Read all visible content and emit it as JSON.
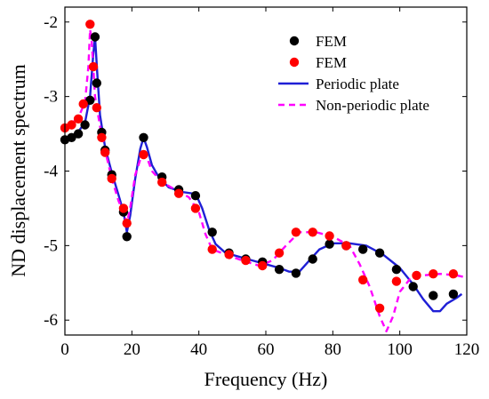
{
  "chart_data": {
    "type": "line",
    "xlabel": "Frequency (Hz)",
    "ylabel": "ND displacement spectrum",
    "xlim": [
      0,
      120
    ],
    "ylim": [
      -6.2,
      -1.8
    ],
    "x_ticks": [
      0,
      20,
      40,
      60,
      80,
      100,
      120
    ],
    "y_ticks": [
      -2,
      -3,
      -4,
      -5,
      -6
    ],
    "x_tick_labels": [
      "0",
      "20",
      "40",
      "60",
      "80",
      "100",
      "120"
    ],
    "y_tick_labels": [
      "-2",
      "-3",
      "-4",
      "-5",
      "-6"
    ],
    "grid": false,
    "legend_position": "top-right",
    "series": [
      {
        "name": "FEM",
        "kind": "scatter",
        "color": "#000000",
        "points": [
          [
            0,
            -3.58
          ],
          [
            2,
            -3.55
          ],
          [
            4,
            -3.5
          ],
          [
            6,
            -3.38
          ],
          [
            7.5,
            -3.05
          ],
          [
            9,
            -2.2
          ],
          [
            9.5,
            -2.82
          ],
          [
            11,
            -3.48
          ],
          [
            12,
            -3.72
          ],
          [
            14,
            -4.05
          ],
          [
            17.5,
            -4.55
          ],
          [
            18.5,
            -4.88
          ],
          [
            23.5,
            -3.55
          ],
          [
            29,
            -4.08
          ],
          [
            34,
            -4.25
          ],
          [
            39,
            -4.33
          ],
          [
            44,
            -4.82
          ],
          [
            49,
            -5.1
          ],
          [
            54,
            -5.18
          ],
          [
            59,
            -5.22
          ],
          [
            64,
            -5.32
          ],
          [
            69,
            -5.37
          ],
          [
            74,
            -5.18
          ],
          [
            79,
            -4.98
          ],
          [
            84,
            -5.0
          ],
          [
            89,
            -5.05
          ],
          [
            94,
            -5.1
          ],
          [
            99,
            -5.32
          ],
          [
            104,
            -5.55
          ],
          [
            110,
            -5.67
          ],
          [
            116,
            -5.65
          ]
        ]
      },
      {
        "name": "FEM",
        "kind": "scatter",
        "color": "#ff0000",
        "points": [
          [
            0,
            -3.42
          ],
          [
            2,
            -3.38
          ],
          [
            4,
            -3.3
          ],
          [
            5.5,
            -3.1
          ],
          [
            7.5,
            -2.03
          ],
          [
            8.5,
            -2.6
          ],
          [
            9.5,
            -3.15
          ],
          [
            11,
            -3.55
          ],
          [
            12,
            -3.75
          ],
          [
            14,
            -4.1
          ],
          [
            17.5,
            -4.5
          ],
          [
            18.5,
            -4.7
          ],
          [
            23.5,
            -3.78
          ],
          [
            29,
            -4.15
          ],
          [
            34,
            -4.3
          ],
          [
            39,
            -4.5
          ],
          [
            44,
            -5.05
          ],
          [
            49,
            -5.12
          ],
          [
            54,
            -5.2
          ],
          [
            59,
            -5.27
          ],
          [
            64,
            -5.1
          ],
          [
            69,
            -4.82
          ],
          [
            74,
            -4.82
          ],
          [
            79,
            -4.87
          ],
          [
            84,
            -5.0
          ],
          [
            89,
            -5.46
          ],
          [
            94,
            -5.84
          ],
          [
            99,
            -5.48
          ],
          [
            105,
            -5.4
          ],
          [
            110,
            -5.38
          ],
          [
            116,
            -5.38
          ]
        ]
      },
      {
        "name": "Periodic plate",
        "kind": "line",
        "color": "#1f1fd6",
        "style": "solid",
        "points": [
          [
            0,
            -3.56
          ],
          [
            2,
            -3.53
          ],
          [
            4,
            -3.47
          ],
          [
            6,
            -3.35
          ],
          [
            7.5,
            -3.0
          ],
          [
            8.5,
            -2.42
          ],
          [
            9,
            -2.2
          ],
          [
            9.6,
            -2.65
          ],
          [
            10.5,
            -3.25
          ],
          [
            12,
            -3.68
          ],
          [
            14,
            -4.02
          ],
          [
            16,
            -4.32
          ],
          [
            17.5,
            -4.55
          ],
          [
            18.5,
            -4.82
          ],
          [
            19.5,
            -4.6
          ],
          [
            21,
            -4.1
          ],
          [
            22.5,
            -3.7
          ],
          [
            23.5,
            -3.55
          ],
          [
            24.5,
            -3.68
          ],
          [
            26,
            -3.92
          ],
          [
            28,
            -4.08
          ],
          [
            31,
            -4.22
          ],
          [
            35,
            -4.28
          ],
          [
            38,
            -4.3
          ],
          [
            39.5,
            -4.35
          ],
          [
            41,
            -4.5
          ],
          [
            43,
            -4.78
          ],
          [
            45,
            -4.98
          ],
          [
            48,
            -5.1
          ],
          [
            52,
            -5.15
          ],
          [
            56,
            -5.2
          ],
          [
            60,
            -5.25
          ],
          [
            64,
            -5.3
          ],
          [
            67,
            -5.35
          ],
          [
            70,
            -5.35
          ],
          [
            73,
            -5.2
          ],
          [
            76,
            -5.05
          ],
          [
            80,
            -4.97
          ],
          [
            85,
            -4.97
          ],
          [
            90,
            -5.0
          ],
          [
            95,
            -5.12
          ],
          [
            100,
            -5.3
          ],
          [
            104,
            -5.52
          ],
          [
            107,
            -5.72
          ],
          [
            110,
            -5.88
          ],
          [
            112,
            -5.88
          ],
          [
            114,
            -5.78
          ],
          [
            117,
            -5.7
          ],
          [
            118.5,
            -5.65
          ]
        ]
      },
      {
        "name": "Non-periodic plate",
        "kind": "line",
        "color": "#ff00ff",
        "style": "dashed",
        "points": [
          [
            0,
            -3.4
          ],
          [
            2,
            -3.36
          ],
          [
            4,
            -3.28
          ],
          [
            6,
            -3.08
          ],
          [
            7,
            -2.6
          ],
          [
            7.5,
            -2.1
          ],
          [
            8,
            -2.25
          ],
          [
            9,
            -3.0
          ],
          [
            10.5,
            -3.4
          ],
          [
            12,
            -3.72
          ],
          [
            14,
            -4.1
          ],
          [
            16,
            -4.4
          ],
          [
            17.5,
            -4.55
          ],
          [
            18.5,
            -4.7
          ],
          [
            19.5,
            -4.5
          ],
          [
            21,
            -4.05
          ],
          [
            23,
            -3.78
          ],
          [
            24.5,
            -3.82
          ],
          [
            26,
            -4.0
          ],
          [
            29,
            -4.15
          ],
          [
            33,
            -4.25
          ],
          [
            37,
            -4.35
          ],
          [
            40,
            -4.55
          ],
          [
            42,
            -4.85
          ],
          [
            44,
            -5.05
          ],
          [
            48,
            -5.12
          ],
          [
            53,
            -5.2
          ],
          [
            58,
            -5.27
          ],
          [
            62,
            -5.2
          ],
          [
            66,
            -5.0
          ],
          [
            70,
            -4.82
          ],
          [
            75,
            -4.82
          ],
          [
            80,
            -4.88
          ],
          [
            85,
            -5.0
          ],
          [
            88,
            -5.25
          ],
          [
            91,
            -5.55
          ],
          [
            94,
            -5.95
          ],
          [
            96,
            -6.15
          ],
          [
            98,
            -5.95
          ],
          [
            100,
            -5.62
          ],
          [
            103,
            -5.45
          ],
          [
            107,
            -5.4
          ],
          [
            112,
            -5.38
          ],
          [
            117,
            -5.4
          ],
          [
            119,
            -5.42
          ]
        ]
      }
    ]
  }
}
